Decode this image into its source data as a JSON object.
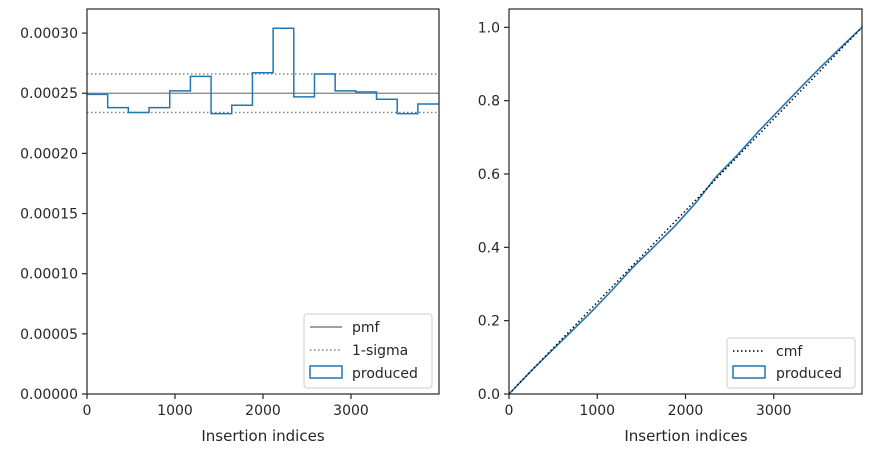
{
  "chart_data": [
    {
      "type": "histogram",
      "xlabel": "Insertion indices",
      "ylabel": "",
      "xlim": [
        0,
        4000
      ],
      "ylim": [
        0,
        0.00032
      ],
      "x_ticks": [
        {
          "value": 0,
          "label": "0"
        },
        {
          "value": 1000,
          "label": "1000"
        },
        {
          "value": 2000,
          "label": "2000"
        },
        {
          "value": 3000,
          "label": "3000"
        }
      ],
      "y_ticks": [
        {
          "value": 0,
          "label": "0.00000"
        },
        {
          "value": 5e-05,
          "label": "0.00005"
        },
        {
          "value": 0.0001,
          "label": "0.00010"
        },
        {
          "value": 0.00015,
          "label": "0.00015"
        },
        {
          "value": 0.0002,
          "label": "0.00020"
        },
        {
          "value": 0.00025,
          "label": "0.00025"
        },
        {
          "value": 0.0003,
          "label": "0.00030"
        }
      ],
      "bin_edges": [
        0,
        235,
        470,
        705,
        940,
        1175,
        1410,
        1645,
        1880,
        2115,
        2350,
        2585,
        2820,
        3055,
        3290,
        3525,
        3760,
        4000
      ],
      "values": [
        0.000249,
        0.000238,
        0.000234,
        0.000238,
        0.000252,
        0.000264,
        0.000233,
        0.00024,
        0.000267,
        0.000304,
        0.000247,
        0.000266,
        0.000252,
        0.000251,
        0.000245,
        0.000233,
        0.000241
      ],
      "pmf": 0.00025,
      "sigma_band": [
        0.000234,
        0.000266
      ],
      "legend": {
        "position": "lower right",
        "entries": [
          "pmf",
          "1-sigma",
          "produced"
        ]
      },
      "colors": {
        "pmf": "#808080",
        "sigma": "#808080",
        "produced": "#1f77b4"
      }
    },
    {
      "type": "line",
      "xlabel": "Insertion indices",
      "ylabel": "",
      "xlim": [
        0,
        4000
      ],
      "ylim": [
        0,
        1.05
      ],
      "x_ticks": [
        {
          "value": 0,
          "label": "0"
        },
        {
          "value": 1000,
          "label": "1000"
        },
        {
          "value": 2000,
          "label": "2000"
        },
        {
          "value": 3000,
          "label": "3000"
        }
      ],
      "y_ticks": [
        {
          "value": 0,
          "label": "0.0"
        },
        {
          "value": 0.2,
          "label": "0.2"
        },
        {
          "value": 0.4,
          "label": "0.4"
        },
        {
          "value": 0.6,
          "label": "0.6"
        },
        {
          "value": 0.8,
          "label": "0.8"
        },
        {
          "value": 1.0,
          "label": "1.0"
        }
      ],
      "cmf": {
        "x": [
          0,
          4000
        ],
        "y": [
          0,
          1.0
        ]
      },
      "produced": {
        "x": [
          0,
          235,
          470,
          705,
          940,
          1175,
          1410,
          1645,
          1880,
          2115,
          2350,
          2585,
          2820,
          3055,
          3290,
          3525,
          3760,
          4000
        ],
        "y": [
          0,
          0.059,
          0.115,
          0.17,
          0.226,
          0.285,
          0.347,
          0.402,
          0.458,
          0.521,
          0.593,
          0.651,
          0.714,
          0.773,
          0.832,
          0.89,
          0.945,
          1.0
        ]
      },
      "legend": {
        "position": "lower right",
        "entries": [
          "cmf",
          "produced"
        ]
      },
      "colors": {
        "cmf": "#000000",
        "produced": "#1f77b4"
      }
    }
  ]
}
